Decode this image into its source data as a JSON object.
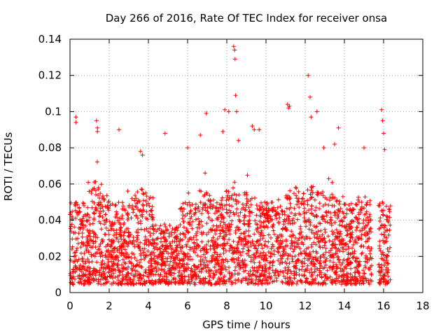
{
  "chart_data": {
    "type": "scatter",
    "title": "Day 266 of 2016, Rate Of TEC Index for receiver onsa",
    "xlabel": "GPS time / hours",
    "ylabel": "ROTI / TECUs",
    "xlim": [
      0,
      18
    ],
    "ylim": [
      0,
      0.14
    ],
    "xticks": [
      "0",
      "2",
      "4",
      "6",
      "8",
      "10",
      "12",
      "14",
      "16",
      "18"
    ],
    "yticks": [
      "0",
      "0.02",
      "0.04",
      "0.06",
      "0.08",
      "0.1",
      "0.12",
      "0.14"
    ],
    "grid": true,
    "marker": "+",
    "color": "#ff0000",
    "coverage": [
      [
        0,
        15.4
      ],
      [
        15.75,
        16.35
      ]
    ],
    "series": [
      {
        "name": "ROTI",
        "x": [
          0.3,
          0.3,
          1.35,
          1.4,
          1.4,
          2.5,
          3.6,
          3.7,
          4.85,
          6.0,
          6.65,
          6.95,
          7.8,
          7.9,
          8.1,
          8.35,
          8.4,
          8.42,
          8.45,
          8.5,
          8.6,
          9.3,
          9.4,
          9.65,
          11.1,
          11.15,
          11.2,
          12.15,
          12.25,
          12.3,
          12.6,
          12.95,
          13.5,
          13.7,
          15.0,
          15.9,
          15.95,
          16.0,
          16.05
        ],
        "y": [
          0.097,
          0.094,
          0.095,
          0.091,
          0.089,
          0.09,
          0.078,
          0.076,
          0.088,
          0.08,
          0.087,
          0.099,
          0.089,
          0.101,
          0.1,
          0.136,
          0.134,
          0.129,
          0.109,
          0.1,
          0.084,
          0.092,
          0.09,
          0.09,
          0.104,
          0.102,
          0.103,
          0.12,
          0.108,
          0.097,
          0.1,
          0.08,
          0.082,
          0.091,
          0.08,
          0.101,
          0.095,
          0.088,
          0.079
        ]
      }
    ]
  }
}
